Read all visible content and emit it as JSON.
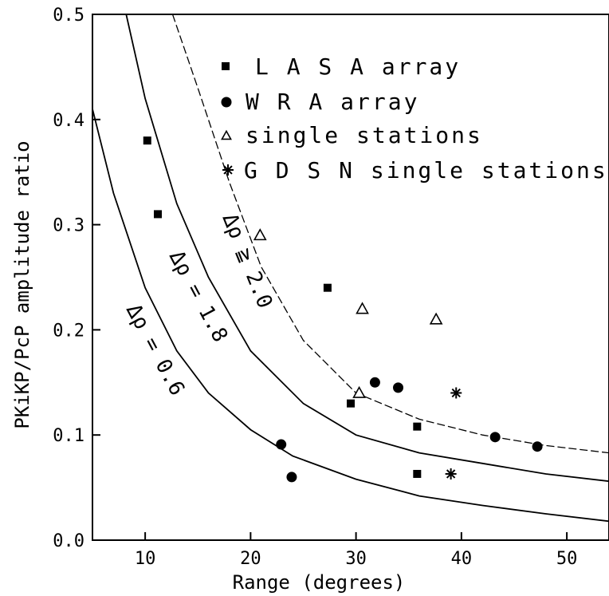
{
  "chart_data": {
    "type": "scatter",
    "xlabel": "Range (degrees)",
    "ylabel": "PKiKP/PcP amplitude ratio",
    "xlim": [
      5,
      54
    ],
    "ylim": [
      0.0,
      0.5
    ],
    "x_ticks": [
      10,
      20,
      30,
      40,
      50
    ],
    "x_tick_labels": [
      "10",
      "20",
      "30",
      "40",
      "50"
    ],
    "y_ticks": [
      0.0,
      0.1,
      0.2,
      0.3,
      0.4,
      0.5
    ],
    "y_tick_labels": [
      "0.0",
      "0.1",
      "0.2",
      "0.3",
      "0.4",
      "0.5"
    ],
    "legend_position": "top-right",
    "series": [
      {
        "name": "L A S A array",
        "marker": "square",
        "points": [
          [
            10.2,
            0.38
          ],
          [
            11.2,
            0.31
          ],
          [
            27.3,
            0.24
          ],
          [
            29.5,
            0.13
          ],
          [
            35.8,
            0.108
          ],
          [
            35.8,
            0.063
          ]
        ]
      },
      {
        "name": "W R A array",
        "marker": "circle",
        "points": [
          [
            22.9,
            0.091
          ],
          [
            23.9,
            0.06
          ],
          [
            31.8,
            0.15
          ],
          [
            34.0,
            0.145
          ],
          [
            43.2,
            0.098
          ],
          [
            47.2,
            0.089
          ]
        ]
      },
      {
        "name": "single stations",
        "marker": "triangle",
        "points": [
          [
            20.9,
            0.29
          ],
          [
            30.6,
            0.22
          ],
          [
            37.6,
            0.21
          ],
          [
            30.3,
            0.14
          ]
        ]
      },
      {
        "name": "G D S N single stations",
        "marker": "asterisk",
        "points": [
          [
            39.5,
            0.14
          ],
          [
            39.0,
            0.063
          ]
        ]
      }
    ],
    "curves": [
      {
        "label": "Δρ = 0.6",
        "style": "solid",
        "points": [
          [
            5,
            0.41
          ],
          [
            7,
            0.33
          ],
          [
            10,
            0.24
          ],
          [
            13,
            0.18
          ],
          [
            16,
            0.14
          ],
          [
            20,
            0.105
          ],
          [
            24,
            0.08
          ],
          [
            30,
            0.058
          ],
          [
            36,
            0.042
          ],
          [
            42,
            0.033
          ],
          [
            48,
            0.025
          ],
          [
            54,
            0.018
          ]
        ]
      },
      {
        "label": "Δρ = 1.8",
        "style": "solid",
        "points": [
          [
            8.2,
            0.5
          ],
          [
            10,
            0.42
          ],
          [
            13,
            0.32
          ],
          [
            16,
            0.25
          ],
          [
            20,
            0.18
          ],
          [
            25,
            0.13
          ],
          [
            30,
            0.1
          ],
          [
            36,
            0.083
          ],
          [
            42,
            0.073
          ],
          [
            48,
            0.063
          ],
          [
            54,
            0.056
          ]
        ]
      },
      {
        "label": "Δρ ≧ 2.0",
        "style": "dashed",
        "points": [
          [
            12.6,
            0.5
          ],
          [
            15,
            0.43
          ],
          [
            18,
            0.34
          ],
          [
            21,
            0.26
          ],
          [
            25,
            0.19
          ],
          [
            30,
            0.14
          ],
          [
            36,
            0.115
          ],
          [
            42,
            0.1
          ],
          [
            48,
            0.09
          ],
          [
            54,
            0.083
          ]
        ]
      }
    ]
  }
}
